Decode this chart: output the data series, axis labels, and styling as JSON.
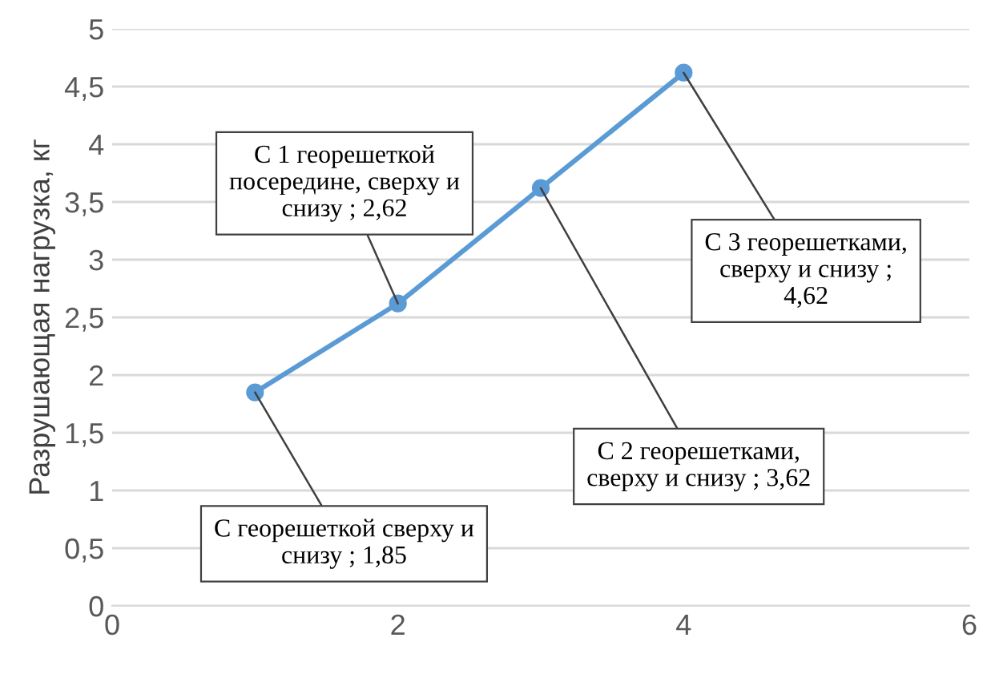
{
  "chart_data": {
    "type": "line",
    "ylabel": "Разрушающая нагрузка, кг",
    "x": [
      1,
      2,
      3,
      4
    ],
    "series": [
      {
        "color": "#5b9bd5",
        "values": [
          1.85,
          2.62,
          3.62,
          4.62
        ]
      }
    ],
    "xlim": [
      0,
      6
    ],
    "xticks": [
      0,
      2,
      4,
      6
    ],
    "ylim": [
      0,
      5
    ],
    "yticks": [
      0,
      {
        "value": 0.5,
        "label": "0,5"
      },
      1,
      {
        "value": 1.5,
        "label": "1,5"
      },
      2,
      {
        "value": 2.5,
        "label": "2,5"
      },
      3,
      {
        "value": 3.5,
        "label": "3,5"
      },
      4,
      {
        "value": 4.5,
        "label": "4,5"
      },
      5
    ],
    "grid": "y",
    "marker": "circle",
    "line_style": "solid",
    "annotations": [
      {
        "text": "С георешеткой сверху и\nснизу ; 1,85",
        "x": 1,
        "y": 1.85
      },
      {
        "text": "С 1 георешеткой\nпосередине, сверху и\nснизу ; 2,62",
        "x": 2,
        "y": 2.62
      },
      {
        "text": "С 2 георешетками,\nсверху и снизу ; 3,62",
        "x": 3,
        "y": 3.62
      },
      {
        "text": "С 3 георешетками,\nсверху и снизу ;\n4,62",
        "x": 4,
        "y": 4.62
      }
    ]
  }
}
